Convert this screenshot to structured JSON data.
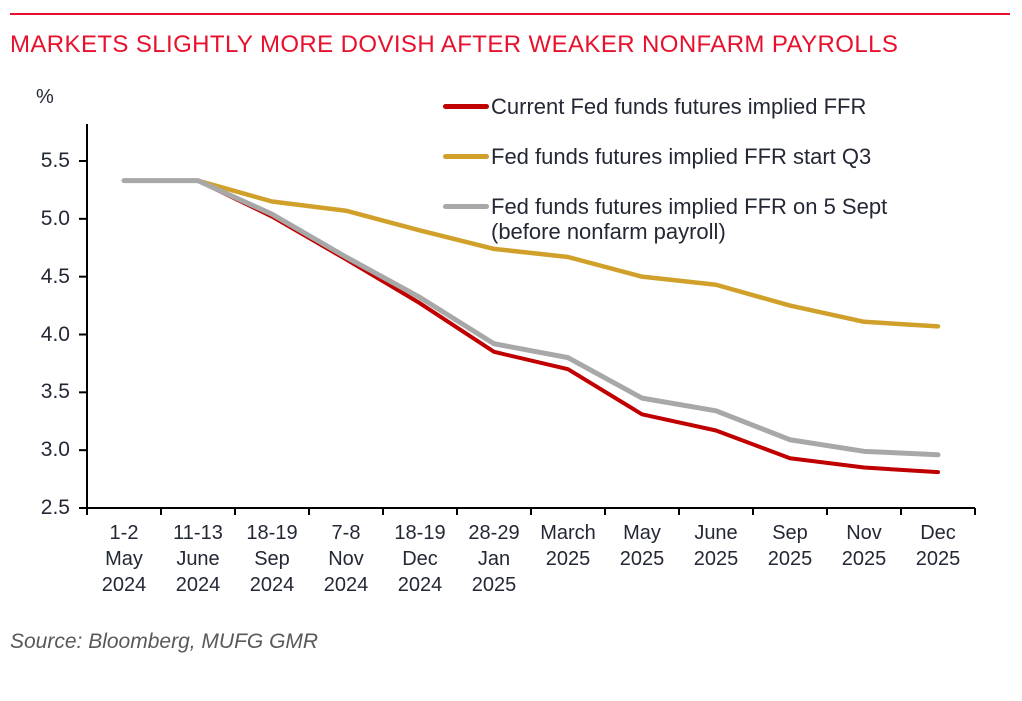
{
  "page": {
    "title": "MARKETS SLIGHTLY MORE DOVISH AFTER WEAKER NONFARM PAYROLLS",
    "unit_label": "%",
    "source_note": "Source: Bloomberg, MUFG GMR"
  },
  "colors": {
    "title_red": "#e8112d",
    "rule_red": "#e8112d",
    "axis_black": "#000000",
    "text_dark": "#232834",
    "source_gray": "#595959",
    "series_red": "#c00000",
    "series_gold": "#d0a02a",
    "series_gray": "#a8a8a8"
  },
  "legend": {
    "items": [
      {
        "label": "Current Fed funds futures implied FFR",
        "label2": "",
        "color": "#c00000"
      },
      {
        "label": "Fed funds futures implied FFR start Q3",
        "label2": "",
        "color": "#d0a02a"
      },
      {
        "label": "Fed funds futures implied FFR on 5 Sept",
        "label2": "(before nonfarm payroll)",
        "color": "#a8a8a8"
      }
    ]
  },
  "chart_data": {
    "type": "line",
    "title": "MARKETS SLIGHTLY MORE DOVISH AFTER WEAKER NONFARM PAYROLLS",
    "xlabel": "",
    "ylabel": "%",
    "ylim": [
      2.5,
      5.5
    ],
    "grid": false,
    "legend_position": "top-right",
    "yticks": [
      "5.5",
      "5.0",
      "4.5",
      "4.0",
      "3.5",
      "3.0",
      "2.5"
    ],
    "ytick_values": [
      5.5,
      5.0,
      4.5,
      4.0,
      3.5,
      3.0,
      2.5
    ],
    "categories": [
      "1-2 May 2024",
      "11-13 June 2024",
      "18-19 Sep 2024",
      "7-8 Nov 2024",
      "18-19 Dec 2024",
      "28-29 Jan 2025",
      "March 2025",
      "May 2025",
      "June 2025",
      "Sep 2025",
      "Nov 2025",
      "Dec 2025"
    ],
    "xtick_lines": [
      [
        "1-2",
        "May",
        "2024"
      ],
      [
        "11-13",
        "June",
        "2024"
      ],
      [
        "18-19",
        "Sep",
        "2024"
      ],
      [
        "7-8",
        "Nov",
        "2024"
      ],
      [
        "18-19",
        "Dec",
        "2024"
      ],
      [
        "28-29",
        "Jan",
        "2025"
      ],
      [
        "March",
        "2025"
      ],
      [
        "May",
        "2025"
      ],
      [
        "June",
        "2025"
      ],
      [
        "Sep",
        "2025"
      ],
      [
        "Nov",
        "2025"
      ],
      [
        "Dec",
        "2025"
      ]
    ],
    "series": [
      {
        "name": "Current Fed funds futures implied FFR",
        "color": "#c00000",
        "stroke_width": 4,
        "values": [
          5.33,
          5.33,
          5.02,
          4.65,
          4.27,
          3.85,
          3.7,
          3.31,
          3.17,
          2.93,
          2.85,
          2.81
        ]
      },
      {
        "name": "Fed funds futures implied FFR start Q3",
        "color": "#d0a02a",
        "stroke_width": 4.5,
        "values": [
          5.33,
          5.33,
          5.15,
          5.07,
          4.9,
          4.74,
          4.67,
          4.5,
          4.43,
          4.25,
          4.11,
          4.07
        ]
      },
      {
        "name": "Fed funds futures implied FFR on 5 Sept (before nonfarm payroll)",
        "color": "#a8a8a8",
        "stroke_width": 5,
        "values": [
          5.33,
          5.33,
          5.04,
          4.67,
          4.32,
          3.92,
          3.8,
          3.45,
          3.34,
          3.09,
          2.99,
          2.96
        ]
      }
    ]
  }
}
